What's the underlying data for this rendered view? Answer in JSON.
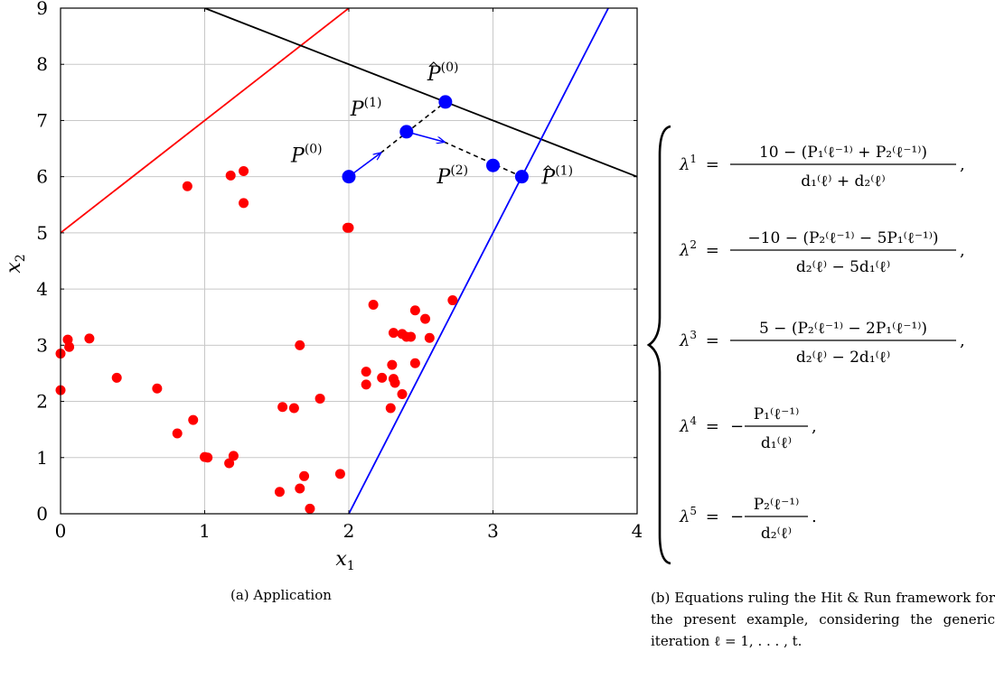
{
  "chart_data": {
    "type": "scatter",
    "xlabel": "x",
    "xlabel_sub": "1",
    "ylabel": "x",
    "ylabel_sub": "2",
    "xlim": [
      0,
      4
    ],
    "ylim": [
      0,
      9
    ],
    "xticks": [
      0,
      1,
      2,
      3,
      4
    ],
    "yticks": [
      0,
      1,
      2,
      3,
      4,
      5,
      6,
      7,
      8,
      9
    ],
    "grid": true,
    "scatter_color": "#ff0000",
    "points": [
      [
        0.0,
        2.85
      ],
      [
        0.0,
        2.2
      ],
      [
        0.05,
        3.1
      ],
      [
        0.06,
        2.97
      ],
      [
        0.2,
        3.12
      ],
      [
        0.39,
        2.42
      ],
      [
        0.67,
        2.23
      ],
      [
        0.81,
        1.43
      ],
      [
        0.92,
        1.67
      ],
      [
        1.0,
        1.01
      ],
      [
        1.02,
        1.0
      ],
      [
        1.17,
        0.9
      ],
      [
        1.2,
        1.03
      ],
      [
        0.88,
        5.83
      ],
      [
        1.18,
        6.02
      ],
      [
        1.27,
        6.1
      ],
      [
        1.27,
        5.53
      ],
      [
        1.52,
        0.39
      ],
      [
        1.54,
        1.9
      ],
      [
        1.62,
        1.88
      ],
      [
        1.66,
        0.45
      ],
      [
        1.66,
        3.0
      ],
      [
        1.69,
        0.67
      ],
      [
        1.73,
        0.09
      ],
      [
        1.8,
        2.05
      ],
      [
        1.94,
        0.71
      ],
      [
        1.99,
        5.09
      ],
      [
        2.0,
        5.09
      ],
      [
        2.12,
        2.3
      ],
      [
        2.12,
        2.53
      ],
      [
        2.17,
        3.72
      ],
      [
        2.23,
        2.42
      ],
      [
        2.29,
        1.88
      ],
      [
        2.3,
        2.65
      ],
      [
        2.31,
        3.22
      ],
      [
        2.31,
        2.4
      ],
      [
        2.32,
        2.33
      ],
      [
        2.37,
        2.13
      ],
      [
        2.37,
        3.2
      ],
      [
        2.4,
        3.15
      ],
      [
        2.43,
        3.15
      ],
      [
        2.46,
        3.62
      ],
      [
        2.46,
        2.68
      ],
      [
        2.53,
        3.47
      ],
      [
        2.56,
        3.13
      ],
      [
        2.72,
        3.8
      ]
    ],
    "lines": [
      {
        "color": "#ff0000",
        "from": [
          0,
          5
        ],
        "to": [
          2,
          9
        ]
      },
      {
        "color": "#000000",
        "from": [
          1,
          9
        ],
        "to": [
          4,
          6
        ]
      },
      {
        "color": "#0000ff",
        "from": [
          2,
          0
        ],
        "to": [
          3.8,
          9
        ]
      }
    ],
    "iterates": {
      "color": "#0000ff",
      "points": [
        {
          "label": "P",
          "sup": "(0)",
          "hat": false,
          "x": 2.0,
          "y": 6.0
        },
        {
          "label": "P",
          "sup": "(1)",
          "hat": false,
          "x": 2.4,
          "y": 6.8
        },
        {
          "label": "P",
          "sup": "(2)",
          "hat": false,
          "x": 3.0,
          "y": 6.2
        },
        {
          "label": "P",
          "sup": "(0)",
          "hat": true,
          "x": 2.67,
          "y": 7.33
        },
        {
          "label": "P",
          "sup": "(1)",
          "hat": true,
          "x": 3.2,
          "y": 6.0
        }
      ],
      "arrows": [
        {
          "from": [
            2.0,
            6.0
          ],
          "to": [
            2.22,
            6.42
          ]
        },
        {
          "from": [
            2.4,
            6.8
          ],
          "to": [
            2.66,
            6.62
          ]
        }
      ],
      "dashed": [
        {
          "from": [
            2.22,
            6.42
          ],
          "to": [
            2.67,
            7.33
          ]
        },
        {
          "from": [
            2.66,
            6.62
          ],
          "to": [
            3.2,
            6.0
          ]
        }
      ]
    }
  },
  "captions": {
    "a": "(a) Application",
    "b": "(b) Equations ruling the Hit & Run framework for the present example, considering the generic iteration ℓ = 1, . . . , t."
  },
  "equations": [
    {
      "lhs": "λ",
      "lhs_sup": "1",
      "num": "10 − (P₁⁽ℓ⁻¹⁾ + P₂⁽ℓ⁻¹⁾)",
      "den": "d₁⁽ℓ⁾ + d₂⁽ℓ⁾",
      "end": ","
    },
    {
      "lhs": "λ",
      "lhs_sup": "2",
      "num": "−10 − (P₂⁽ℓ⁻¹⁾ − 5P₁⁽ℓ⁻¹⁾)",
      "den": "d₂⁽ℓ⁾ − 5d₁⁽ℓ⁾",
      "end": ","
    },
    {
      "lhs": "λ",
      "lhs_sup": "3",
      "num": "5 − (P₂⁽ℓ⁻¹⁾ − 2P₁⁽ℓ⁻¹⁾)",
      "den": "d₂⁽ℓ⁾ − 2d₁⁽ℓ⁾",
      "end": ","
    },
    {
      "lhs": "λ",
      "lhs_sup": "4",
      "neg": "−",
      "num": "P₁⁽ℓ⁻¹⁾",
      "den": "d₁⁽ℓ⁾",
      "end": ","
    },
    {
      "lhs": "λ",
      "lhs_sup": "5",
      "neg": "−",
      "num": "P₂⁽ℓ⁻¹⁾",
      "den": "d₂⁽ℓ⁾",
      "end": "."
    }
  ]
}
